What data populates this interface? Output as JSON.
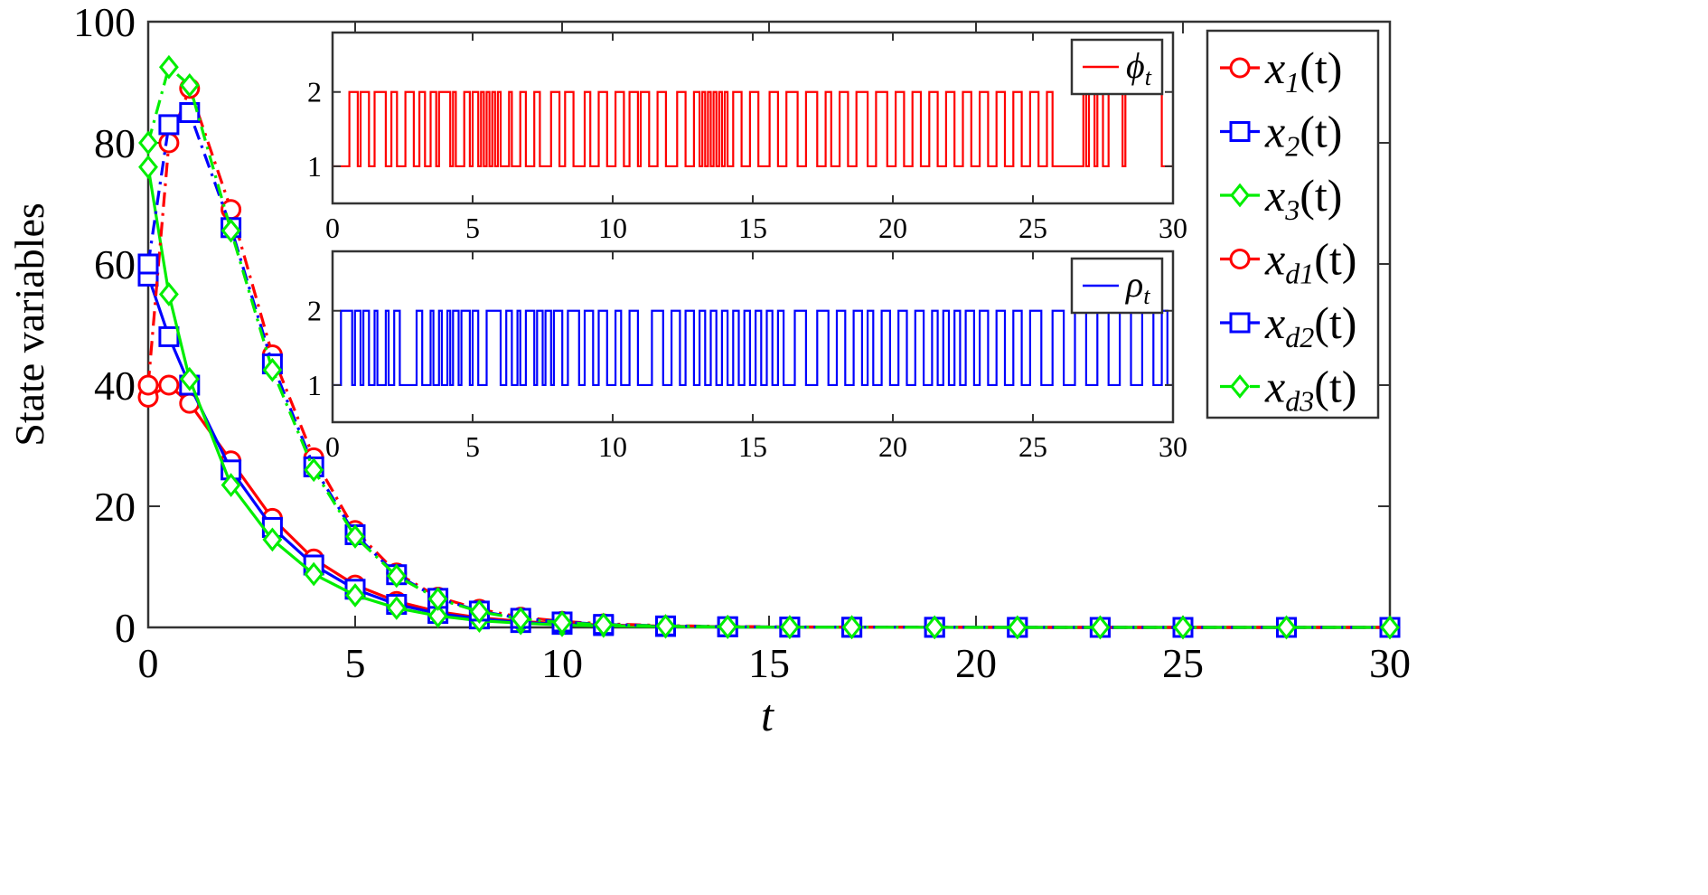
{
  "chart_data": [
    {
      "type": "line",
      "xlabel": "t",
      "ylabel": "State variables",
      "xlim": [
        0,
        30
      ],
      "ylim": [
        0,
        100
      ],
      "xticks": [
        0,
        5,
        10,
        15,
        20,
        25,
        30
      ],
      "yticks": [
        0,
        20,
        40,
        60,
        80,
        100
      ],
      "grid": false,
      "legend_position": "right",
      "series": [
        {
          "name": "x1(t)",
          "label_base": "x",
          "label_sub": "1",
          "label_paren": "(t)",
          "color": "#ff0000",
          "dash": "solid",
          "marker": "circle",
          "x": [
            0,
            0.5,
            1,
            2,
            3,
            4,
            5,
            6,
            7,
            8,
            9,
            10,
            11,
            12.5,
            14,
            15.5,
            17,
            19,
            21,
            23,
            25,
            27.5,
            30
          ],
          "y": [
            38,
            40,
            37,
            27.5,
            18,
            11.3,
            7,
            4.3,
            2.6,
            1.6,
            1,
            0.6,
            0.4,
            0.2,
            0.1,
            0.05,
            0.03,
            0.01,
            0,
            0,
            0,
            0,
            0
          ]
        },
        {
          "name": "x2(t)",
          "label_base": "x",
          "label_sub": "2",
          "label_paren": "(t)",
          "color": "#0000ff",
          "dash": "solid",
          "marker": "square",
          "x": [
            0,
            0.5,
            1,
            2,
            3,
            4,
            5,
            6,
            7,
            8,
            9,
            10,
            11,
            12.5,
            14,
            15.5,
            17,
            19,
            21,
            23,
            25,
            27.5,
            30
          ],
          "y": [
            58,
            48,
            40,
            26,
            16.5,
            10.3,
            6.3,
            3.8,
            2.3,
            1.4,
            0.8,
            0.5,
            0.3,
            0.15,
            0.08,
            0.04,
            0.02,
            0.01,
            0,
            0,
            0,
            0,
            0
          ]
        },
        {
          "name": "x3(t)",
          "label_base": "x",
          "label_sub": "3",
          "label_paren": "(t)",
          "color": "#00ee00",
          "dash": "solid",
          "marker": "diamond",
          "x": [
            0,
            0.5,
            1,
            2,
            3,
            4,
            5,
            6,
            7,
            8,
            9,
            10,
            11,
            12.5,
            14,
            15.5,
            17,
            19,
            21,
            23,
            25,
            27.5,
            30
          ],
          "y": [
            76,
            55,
            41,
            23.5,
            14.5,
            8.8,
            5.3,
            3.2,
            1.9,
            1.1,
            0.7,
            0.4,
            0.25,
            0.12,
            0.06,
            0.03,
            0.02,
            0.01,
            0,
            0,
            0,
            0,
            0
          ]
        },
        {
          "name": "xd1(t)",
          "label_base": "x",
          "label_sub": "d1",
          "label_paren": "(t)",
          "color": "#ff0000",
          "dash": "dashdot",
          "marker": "circle",
          "x": [
            0,
            0.5,
            1,
            2,
            3,
            4,
            5,
            6,
            7,
            8,
            9,
            10,
            11,
            12.5,
            14,
            15.5,
            17,
            19,
            21,
            23,
            25,
            27.5,
            30
          ],
          "y": [
            40,
            80,
            89,
            69,
            45,
            28,
            16,
            9,
            5,
            3,
            1.7,
            1,
            0.6,
            0.3,
            0.15,
            0.08,
            0.04,
            0.02,
            0.01,
            0,
            0,
            0,
            0
          ]
        },
        {
          "name": "xd2(t)",
          "label_base": "x",
          "label_sub": "d2",
          "label_paren": "(t)",
          "color": "#0000ff",
          "dash": "dashdot",
          "marker": "square",
          "x": [
            0,
            0.5,
            1,
            2,
            3,
            4,
            5,
            6,
            7,
            8,
            9,
            10,
            11,
            12.5,
            14,
            15.5,
            17,
            19,
            21,
            23,
            25,
            27.5,
            30
          ],
          "y": [
            60,
            83,
            85,
            66,
            43.5,
            26.5,
            15.3,
            8.7,
            4.8,
            2.7,
            1.5,
            0.9,
            0.5,
            0.25,
            0.12,
            0.06,
            0.03,
            0.02,
            0.01,
            0,
            0,
            0,
            0
          ]
        },
        {
          "name": "xd3(t)",
          "label_base": "x",
          "label_sub": "d3",
          "label_paren": "(t)",
          "color": "#00ee00",
          "dash": "dashdot",
          "marker": "diamond",
          "x": [
            0,
            0.5,
            1,
            2,
            3,
            4,
            5,
            6,
            7,
            8,
            9,
            10,
            11,
            12.5,
            14,
            15.5,
            17,
            19,
            21,
            23,
            25,
            27.5,
            30
          ],
          "y": [
            80,
            92.5,
            89.5,
            65.5,
            42.5,
            26,
            15,
            8.5,
            4.7,
            2.6,
            1.4,
            0.8,
            0.45,
            0.22,
            0.11,
            0.05,
            0.03,
            0.01,
            0,
            0,
            0,
            0,
            0
          ]
        }
      ]
    },
    {
      "type": "line",
      "subtype": "step",
      "xlim": [
        0,
        30
      ],
      "ylim": [
        0.5,
        2.8
      ],
      "xticks": [
        0,
        5,
        10,
        15,
        20,
        25,
        30
      ],
      "yticks": [
        1,
        2
      ],
      "legend_position": "top-right",
      "series": [
        {
          "name": "ϕt",
          "label_base": "ϕ",
          "label_sub": "t",
          "color": "#ff0000",
          "switch_times": [
            0.6,
            0.9,
            1.0,
            1.3,
            1.5,
            1.9,
            2.1,
            2.3,
            2.6,
            2.9,
            3.1,
            3.3,
            3.5,
            3.7,
            3.8,
            4.2,
            4.3,
            4.4,
            4.7,
            4.9,
            5.0,
            5.2,
            5.3,
            5.4,
            5.5,
            5.6,
            5.7,
            5.8,
            5.9,
            6.0,
            6.3,
            6.4,
            6.7,
            6.9,
            7.2,
            7.4,
            7.8,
            8.1,
            8.3,
            8.6,
            9.0,
            9.2,
            9.5,
            9.8,
            10.1,
            10.4,
            10.6,
            10.9,
            11.0,
            11.3,
            11.6,
            11.9,
            12.3,
            12.6,
            12.9,
            13.1,
            13.2,
            13.3,
            13.4,
            13.5,
            13.6,
            13.7,
            13.8,
            13.9,
            14.0,
            14.1,
            14.3,
            14.6,
            14.9,
            15.2,
            15.6,
            15.9,
            16.2,
            16.6,
            16.9,
            17.3,
            17.6,
            17.8,
            18.1,
            18.4,
            18.7,
            19.1,
            19.4,
            19.8,
            20.1,
            20.4,
            20.7,
            21.0,
            21.3,
            21.6,
            21.9,
            22.2,
            22.5,
            22.8,
            23.1,
            23.4,
            23.7,
            24.0,
            24.3,
            24.6,
            24.9,
            25.2,
            25.5,
            25.7,
            26.8,
            26.9,
            27.0,
            27.2,
            27.3,
            27.5,
            27.7,
            28.2,
            28.3,
            29.6
          ],
          "initial_state": 1
        }
      ]
    },
    {
      "type": "line",
      "subtype": "step",
      "xlim": [
        0,
        30
      ],
      "ylim": [
        0.5,
        2.8
      ],
      "xticks": [
        0,
        5,
        10,
        15,
        20,
        25,
        30
      ],
      "yticks": [
        1,
        2
      ],
      "legend_position": "top-right",
      "series": [
        {
          "name": "ρt",
          "label_base": "ρ",
          "label_sub": "t",
          "color": "#0000ff",
          "switch_times": [
            0.3,
            0.7,
            0.8,
            1.0,
            1.1,
            1.3,
            1.5,
            1.6,
            1.9,
            2.0,
            2.2,
            2.4,
            3.0,
            3.2,
            3.5,
            3.6,
            3.8,
            3.9,
            4.1,
            4.2,
            4.3,
            4.5,
            4.6,
            4.9,
            5.0,
            5.2,
            5.5,
            6.0,
            6.2,
            6.4,
            6.6,
            6.7,
            6.9,
            7.2,
            7.3,
            7.5,
            7.6,
            7.8,
            7.9,
            8.2,
            8.4,
            8.8,
            9.0,
            9.3,
            9.5,
            9.8,
            10.1,
            10.3,
            10.6,
            10.9,
            11.4,
            11.8,
            12.1,
            12.4,
            12.6,
            12.9,
            13.1,
            13.3,
            13.5,
            13.7,
            13.9,
            14.1,
            14.3,
            14.5,
            14.7,
            14.9,
            15.1,
            15.3,
            15.5,
            15.7,
            15.9,
            16.1,
            16.5,
            16.9,
            17.3,
            17.7,
            18.0,
            18.3,
            18.6,
            18.9,
            19.1,
            19.3,
            19.6,
            19.9,
            20.2,
            20.5,
            20.8,
            21.1,
            21.4,
            21.6,
            21.8,
            22.0,
            22.2,
            22.4,
            22.6,
            22.9,
            23.1,
            23.4,
            23.7,
            24.0,
            24.3,
            24.6,
            24.9,
            25.3,
            25.7,
            26.1,
            26.5,
            26.9,
            27.3,
            27.7,
            28.1,
            28.5,
            28.9,
            29.3,
            29.6,
            29.8
          ],
          "initial_state": 1
        }
      ]
    }
  ]
}
